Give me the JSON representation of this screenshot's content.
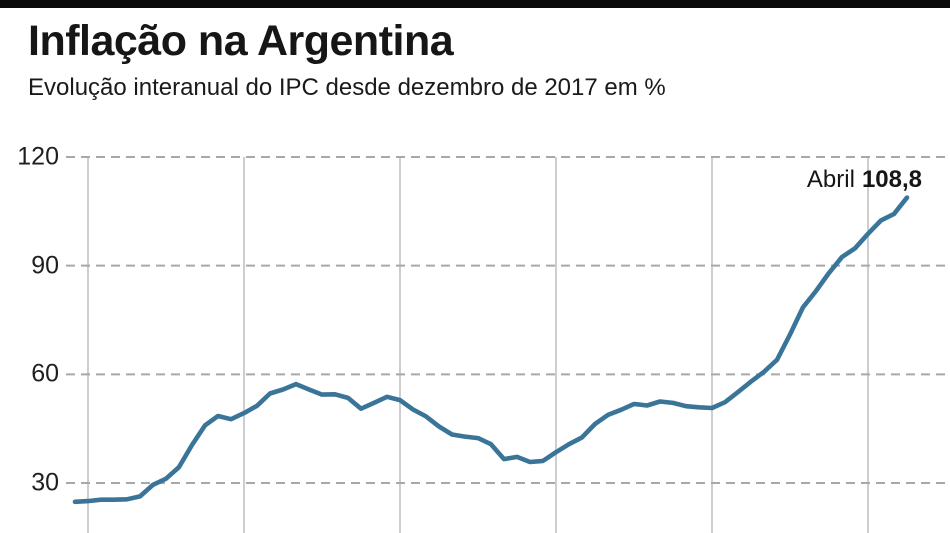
{
  "header": {
    "title": "Inflação na Argentina",
    "subtitle": "Evolução interanual do IPC desde dezembro de 2017 em %"
  },
  "chart_data": {
    "type": "line",
    "title": "Inflação na Argentina",
    "subtitle": "Evolução interanual do IPC desde dezembro de 2017 em %",
    "unit": "%",
    "x": [
      "2017-12",
      "2018-01",
      "2018-02",
      "2018-03",
      "2018-04",
      "2018-05",
      "2018-06",
      "2018-07",
      "2018-08",
      "2018-09",
      "2018-10",
      "2018-11",
      "2018-12",
      "2019-01",
      "2019-02",
      "2019-03",
      "2019-04",
      "2019-05",
      "2019-06",
      "2019-07",
      "2019-08",
      "2019-09",
      "2019-10",
      "2019-11",
      "2019-12",
      "2020-01",
      "2020-02",
      "2020-03",
      "2020-04",
      "2020-05",
      "2020-06",
      "2020-07",
      "2020-08",
      "2020-09",
      "2020-10",
      "2020-11",
      "2020-12",
      "2021-01",
      "2021-02",
      "2021-03",
      "2021-04",
      "2021-05",
      "2021-06",
      "2021-07",
      "2021-08",
      "2021-09",
      "2021-10",
      "2021-11",
      "2021-12",
      "2022-01",
      "2022-02",
      "2022-03",
      "2022-04",
      "2022-05",
      "2022-06",
      "2022-07",
      "2022-08",
      "2022-09",
      "2022-10",
      "2022-11",
      "2022-12",
      "2023-01",
      "2023-02",
      "2023-03",
      "2023-04"
    ],
    "values": [
      24.8,
      25.0,
      25.4,
      25.4,
      25.5,
      26.3,
      29.5,
      31.2,
      34.4,
      40.5,
      45.9,
      48.5,
      47.6,
      49.3,
      51.3,
      54.7,
      55.8,
      57.3,
      55.8,
      54.4,
      54.5,
      53.5,
      50.5,
      52.1,
      53.8,
      52.9,
      50.3,
      48.4,
      45.6,
      43.4,
      42.8,
      42.4,
      40.7,
      36.6,
      37.2,
      35.8,
      36.1,
      38.5,
      40.7,
      42.6,
      46.3,
      48.8,
      50.2,
      51.8,
      51.4,
      52.5,
      52.1,
      51.2,
      50.9,
      50.7,
      52.3,
      55.1,
      58.0,
      60.7,
      64.0,
      71.0,
      78.5,
      83.0,
      88.0,
      92.4,
      94.8,
      98.8,
      102.5,
      104.3,
      108.8
    ],
    "yticks": [
      120,
      90,
      60,
      30
    ],
    "ylim_visible": [
      21,
      124
    ],
    "grid": {
      "horizontal": "dashed",
      "vertical": "solid"
    },
    "vertical_gridline_months": [
      "2018-01",
      "2019-01",
      "2020-01",
      "2021-01",
      "2022-01",
      "2023-01"
    ],
    "legend": "none",
    "line_color": "#3a7599",
    "grid_dashed_color": "#a8a8a8",
    "grid_solid_color": "#c9c9c9",
    "annotation": {
      "label": "Abril",
      "value_text": "108,8",
      "value": 108.8,
      "x": "2023-04"
    }
  }
}
